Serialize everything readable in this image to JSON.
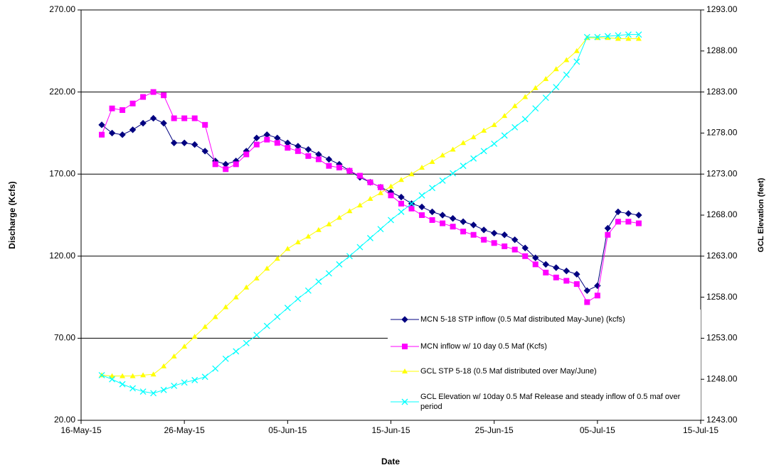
{
  "chart_data": {
    "type": "line",
    "x_label": "Date",
    "y_label": "Discharge (Kcfs)",
    "y2_label": "GCL Elevation (feet)",
    "x": [
      "2015-05-18",
      "2015-05-19",
      "2015-05-20",
      "2015-05-21",
      "2015-05-22",
      "2015-05-23",
      "2015-05-24",
      "2015-05-25",
      "2015-05-26",
      "2015-05-27",
      "2015-05-28",
      "2015-05-29",
      "2015-05-30",
      "2015-05-31",
      "2015-06-01",
      "2015-06-02",
      "2015-06-03",
      "2015-06-04",
      "2015-06-05",
      "2015-06-06",
      "2015-06-07",
      "2015-06-08",
      "2015-06-09",
      "2015-06-10",
      "2015-06-11",
      "2015-06-12",
      "2015-06-13",
      "2015-06-14",
      "2015-06-15",
      "2015-06-16",
      "2015-06-17",
      "2015-06-18",
      "2015-06-19",
      "2015-06-20",
      "2015-06-21",
      "2015-06-22",
      "2015-06-23",
      "2015-06-24",
      "2015-06-25",
      "2015-06-26",
      "2015-06-27",
      "2015-06-28",
      "2015-06-29",
      "2015-06-30",
      "2015-07-01",
      "2015-07-02",
      "2015-07-03",
      "2015-07-04",
      "2015-07-05",
      "2015-07-06",
      "2015-07-07",
      "2015-07-08",
      "2015-07-09"
    ],
    "xlim": [
      "2015-05-16",
      "2015-07-15"
    ],
    "xticks": [
      {
        "value": "2015-05-16",
        "label": "16-May-15"
      },
      {
        "value": "2015-05-26",
        "label": "26-May-15"
      },
      {
        "value": "2015-06-05",
        "label": "05-Jun-15"
      },
      {
        "value": "2015-06-15",
        "label": "15-Jun-15"
      },
      {
        "value": "2015-06-25",
        "label": "25-Jun-15"
      },
      {
        "value": "2015-07-05",
        "label": "05-Jul-15"
      },
      {
        "value": "2015-07-15",
        "label": "15-Jul-15"
      }
    ],
    "ylim": [
      20,
      270
    ],
    "yticks": [
      {
        "value": 20,
        "label": "20.00"
      },
      {
        "value": 70,
        "label": "70.00"
      },
      {
        "value": 120,
        "label": "120.00"
      },
      {
        "value": 170,
        "label": "170.00"
      },
      {
        "value": 220,
        "label": "220.00"
      },
      {
        "value": 270,
        "label": "270.00"
      }
    ],
    "y2lim": [
      1243,
      1293
    ],
    "y2ticks": [
      {
        "value": 1243,
        "label": "1243.00"
      },
      {
        "value": 1248,
        "label": "1248.00"
      },
      {
        "value": 1253,
        "label": "1253.00"
      },
      {
        "value": 1258,
        "label": "1258.00"
      },
      {
        "value": 1263,
        "label": "1263.00"
      },
      {
        "value": 1268,
        "label": "1268.00"
      },
      {
        "value": 1273,
        "label": "1273.00"
      },
      {
        "value": 1278,
        "label": "1278.00"
      },
      {
        "value": 1283,
        "label": "1283.00"
      },
      {
        "value": 1288,
        "label": "1288.00"
      },
      {
        "value": 1293,
        "label": "1293.00"
      }
    ],
    "grid": true,
    "legend": "lower-right",
    "series": [
      {
        "name": "MCN 5-18 STP inflow (0.5 Maf distributed May-June) (kcfs)",
        "color": "#000080",
        "marker": "diamond",
        "values": [
          200,
          195,
          194,
          197,
          201,
          204,
          201,
          189,
          189,
          188,
          184,
          178,
          176,
          178,
          184,
          192,
          194,
          192,
          189,
          187,
          185,
          182,
          179,
          176,
          172,
          168,
          165,
          162,
          159,
          156,
          152,
          150,
          147,
          145,
          143,
          141,
          139,
          136,
          134,
          133,
          130,
          125,
          119,
          115,
          113,
          111,
          109,
          99,
          102,
          137,
          147,
          146,
          145
        ]
      },
      {
        "name": "MCN inflow w/ 10 day 0.5 Maf (Kcfs)",
        "color": "#ff00ff",
        "marker": "square",
        "values": [
          194,
          210,
          209,
          213,
          217,
          220,
          218,
          204,
          204,
          204,
          200,
          176,
          173,
          176,
          182,
          188,
          191,
          189,
          186,
          184,
          181,
          179,
          175,
          174,
          172,
          169,
          165,
          162,
          157,
          152,
          149,
          145,
          142,
          140,
          138,
          135,
          133,
          130,
          128,
          126,
          124,
          120,
          115,
          110,
          107,
          105,
          103,
          92,
          96,
          133,
          141,
          141,
          140
        ]
      },
      {
        "name": "GCL STP 5-18 (0.5 Maf distributed over May/June)",
        "color": "#ffff00",
        "marker": "triangle",
        "axis": "y2",
        "values": [
          1248.5,
          1248.4,
          1248.4,
          1248.4,
          1248.5,
          1248.6,
          1249.6,
          1250.8,
          1252.0,
          1253.2,
          1254.4,
          1255.6,
          1256.8,
          1258.0,
          1259.2,
          1260.3,
          1261.5,
          1262.7,
          1263.9,
          1264.7,
          1265.4,
          1266.2,
          1266.9,
          1267.7,
          1268.5,
          1269.2,
          1270.0,
          1270.7,
          1271.5,
          1272.3,
          1273.0,
          1273.8,
          1274.5,
          1275.3,
          1276.0,
          1276.8,
          1277.5,
          1278.3,
          1279.0,
          1280.1,
          1281.3,
          1282.4,
          1283.5,
          1284.6,
          1285.8,
          1286.9,
          1288.0,
          1289.6,
          1289.6,
          1289.6,
          1289.5,
          1289.5,
          1289.5
        ]
      },
      {
        "name": "GCL Elevation w/ 10day 0.5 Maf Release and steady inflow of 0.5 maf over period",
        "color": "#00ffff",
        "marker": "x",
        "axis": "y2",
        "values": [
          1248.5,
          1248.0,
          1247.4,
          1246.9,
          1246.5,
          1246.3,
          1246.7,
          1247.2,
          1247.6,
          1247.9,
          1248.3,
          1249.3,
          1250.5,
          1251.4,
          1252.4,
          1253.4,
          1254.5,
          1255.6,
          1256.7,
          1257.8,
          1258.8,
          1259.9,
          1260.9,
          1262.0,
          1263.0,
          1264.1,
          1265.2,
          1266.3,
          1267.4,
          1268.4,
          1269.4,
          1270.4,
          1271.3,
          1272.2,
          1273.1,
          1274.0,
          1274.9,
          1275.8,
          1276.7,
          1277.7,
          1278.7,
          1279.7,
          1281.0,
          1282.3,
          1283.6,
          1285.1,
          1286.7,
          1289.7,
          1289.7,
          1289.8,
          1289.9,
          1290.0,
          1290.0
        ]
      }
    ]
  }
}
